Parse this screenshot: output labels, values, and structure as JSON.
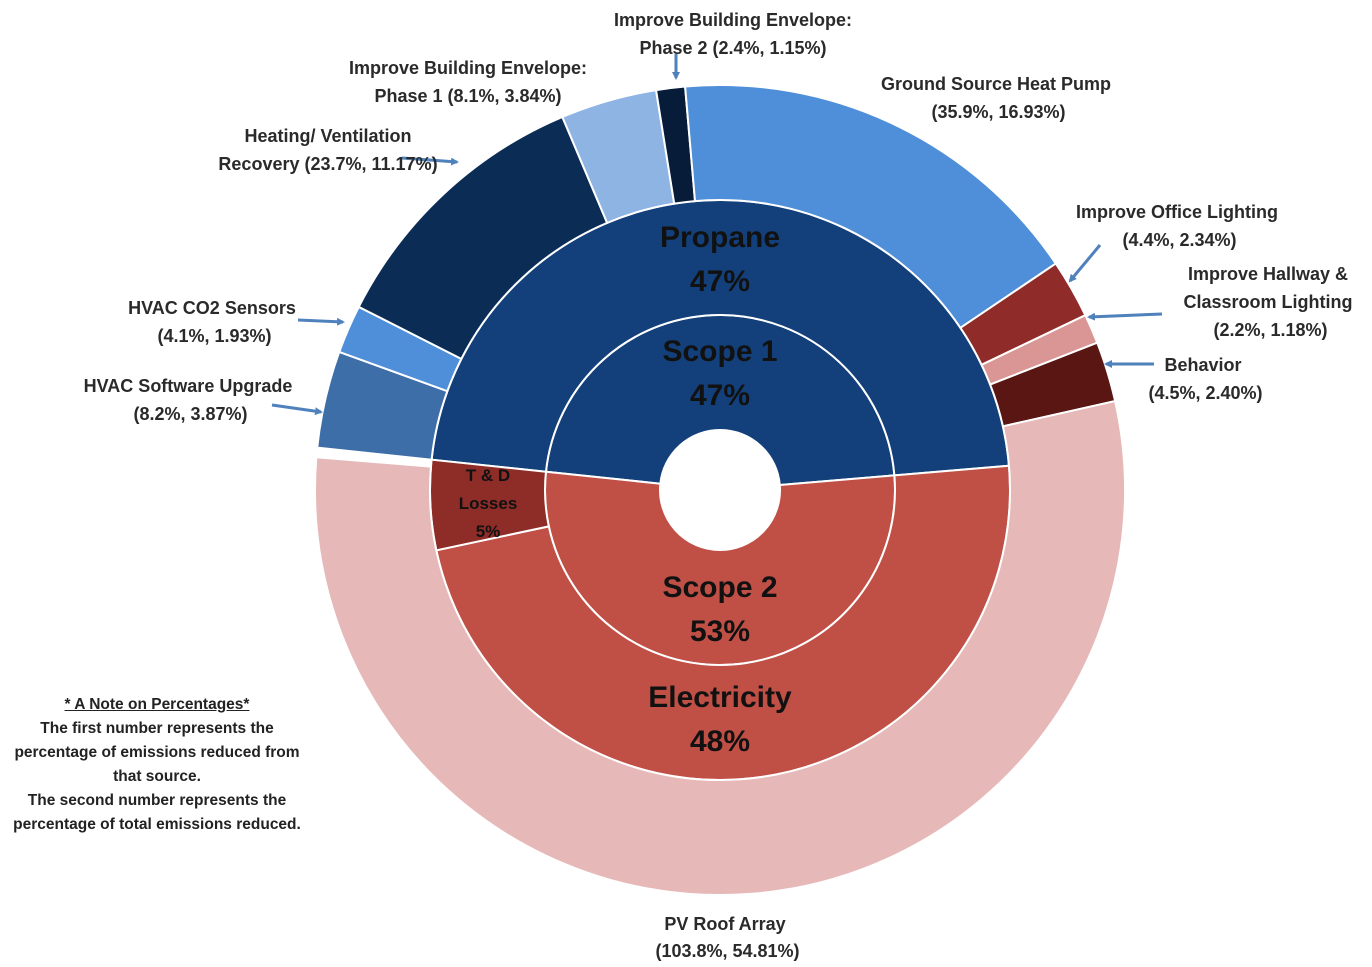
{
  "chart_data": {
    "type": "sunburst",
    "rings": [
      {
        "labels": [
          "Scope 1",
          "Scope 2"
        ],
        "values": [
          47,
          53
        ],
        "value_labels": [
          "47%",
          "53%"
        ],
        "colors": [
          "#13407a",
          "#c05046"
        ]
      },
      {
        "labels": [
          "Propane",
          "Electricity",
          "T & D Losses"
        ],
        "values": [
          47,
          48,
          5
        ],
        "value_labels": [
          "47%",
          "48%",
          "5%"
        ],
        "colors": [
          "#13407a",
          "#c05046",
          "#8e2c28"
        ]
      },
      {
        "labels": [
          "HVAC Software Upgrade",
          "HVAC CO2 Sensors",
          "Heating/ Ventilation Recovery",
          "Improve Building Envelope: Phase 1",
          "Improve Building Envelope: Phase 2",
          "Ground Source Heat Pump",
          "Improve Office Lighting",
          "Improve Hallway & Classroom Lighting",
          "Behavior",
          "PV Roof Array"
        ],
        "values": [
          3.87,
          1.93,
          11.17,
          3.84,
          1.15,
          16.93,
          2.34,
          1.18,
          2.4,
          54.81
        ],
        "value_labels": [
          "(8.2%, 3.87%)",
          "(4.1%, 1.93%)",
          "(23.7%, 11.17%)",
          "(8.1%, 3.84%)",
          "(2.4%, 1.15%)",
          "(35.9%, 16.93%)",
          "(4.4%, 2.34%)",
          "(2.2%, 1.18%)",
          "(4.5%, 2.40%)",
          "(103.8%, 54.81%)"
        ],
        "colors": [
          "#3e6ea8",
          "#4f8ed8",
          "#0b2d55",
          "#8eb4e3",
          "#071c38",
          "#4f8ed8",
          "#8f2b28",
          "#d99694",
          "#5a1613",
          "#e6b9b8"
        ]
      }
    ],
    "note": {
      "title": "* A Note on Percentages*",
      "text": [
        "The first number represents the percentage of emissions reduced from that source.",
        "The second number represents the percentage of total emissions reduced."
      ]
    }
  }
}
